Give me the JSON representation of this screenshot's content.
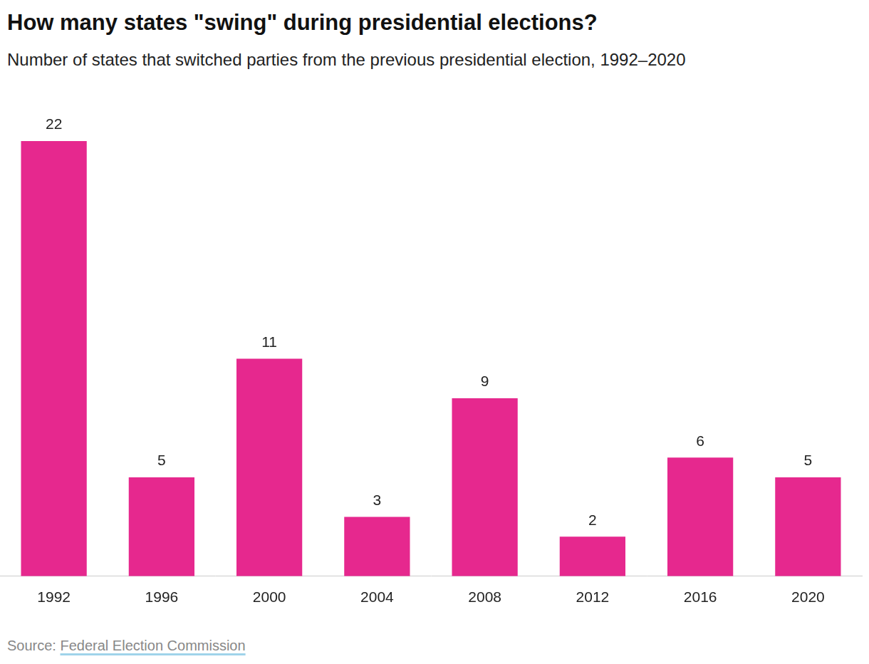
{
  "chart_data": {
    "type": "bar",
    "title": "How many states \"swing\" during presidential elections?",
    "subtitle": "Number of states that switched parties from the previous presidential election, 1992–2020",
    "categories": [
      "1992",
      "1996",
      "2000",
      "2004",
      "2008",
      "2012",
      "2016",
      "2020"
    ],
    "values": [
      22,
      5,
      11,
      3,
      9,
      2,
      6,
      5
    ],
    "color": "#e6288e",
    "ylim": [
      0,
      22
    ],
    "grid": false,
    "data_labels": true,
    "tick_labels": "x",
    "source_label": "Source:",
    "source": "Federal Election Commission"
  }
}
